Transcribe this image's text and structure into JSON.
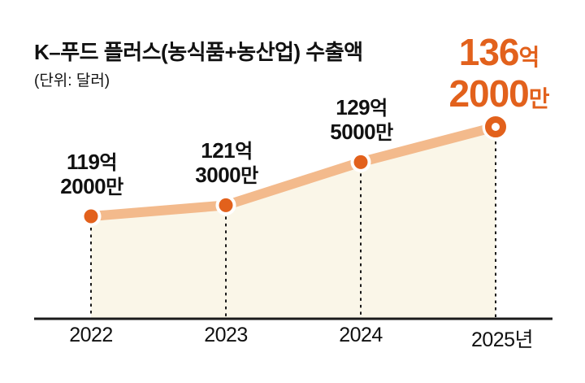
{
  "title": "K–푸드 플러스(농식품+농산업) 수출액",
  "subtitle": "(단위: 달러)",
  "colors": {
    "accent_orange": "#E2611C",
    "line_peach": "#F3BA8C",
    "area_cream": "#FAF6E8",
    "text_black": "#111111",
    "axis_black": "#1A1A1A"
  },
  "chart_data": {
    "type": "area",
    "title": "K–푸드 플러스(농식품+농산업) 수출액",
    "unit_note": "(단위: 달러)",
    "xlabel": "",
    "ylabel": "",
    "grid": false,
    "legend": "none",
    "categories": [
      "2022",
      "2023",
      "2024",
      "2025년"
    ],
    "values_eok_dollars": [
      119.2,
      121.3,
      129.5,
      136.2
    ],
    "ylim": [
      100,
      145
    ],
    "point_labels": [
      {
        "num1": "119",
        "suf1": "억",
        "num2": "2000",
        "suf2": "만",
        "highlight": false
      },
      {
        "num1": "121",
        "suf1": "억",
        "num2": "3000",
        "suf2": "만",
        "highlight": false
      },
      {
        "num1": "129",
        "suf1": "억",
        "num2": "5000",
        "suf2": "만",
        "highlight": false
      },
      {
        "num1": "136",
        "suf1": "억",
        "num2": "2000",
        "suf2": "만",
        "highlight": true
      }
    ]
  }
}
